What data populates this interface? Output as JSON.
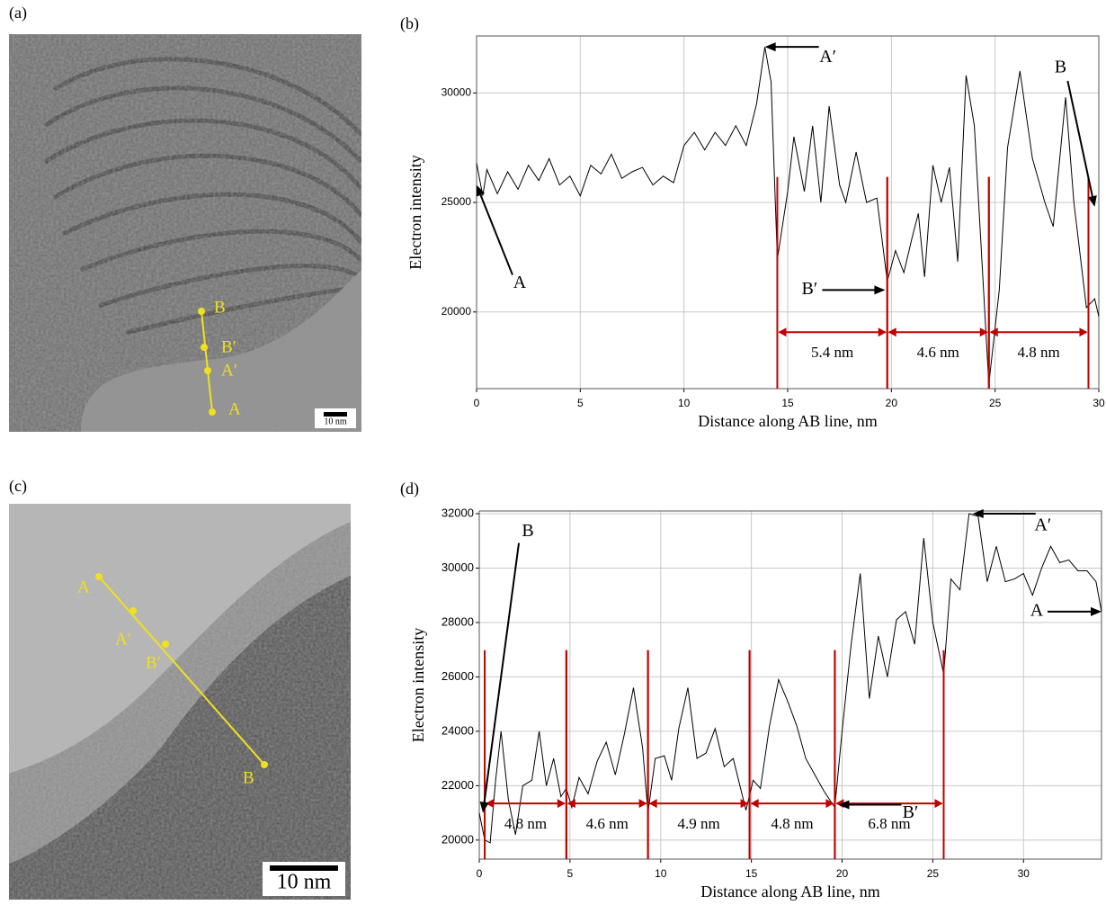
{
  "panels": {
    "a": {
      "label": "(a)",
      "points": [
        "B",
        "B′",
        "A′",
        "A"
      ],
      "scale": "10 nm"
    },
    "c": {
      "label": "(c)",
      "points": [
        "A",
        "A′",
        "B′",
        "B"
      ],
      "scale": "10 nm"
    }
  },
  "chart_data": [
    {
      "type": "line",
      "label": "(b)",
      "x_label": "Distance along AB line, nm",
      "y_label": "Electron intensity",
      "xlim": [
        0,
        30
      ],
      "ylim": [
        16500,
        32600
      ],
      "xticks": [
        0,
        5,
        10,
        15,
        20,
        25,
        30
      ],
      "yticks": [
        20000,
        25000,
        30000
      ],
      "grid": true,
      "x": [
        0,
        0.3,
        0.5,
        1,
        1.5,
        2,
        2.5,
        3,
        3.5,
        4,
        4.5,
        5,
        5.5,
        6,
        6.5,
        7,
        7.5,
        8,
        8.5,
        9,
        9.5,
        10,
        10.5,
        11,
        11.5,
        12,
        12.5,
        13,
        13.5,
        13.9,
        14.2,
        14.5,
        15,
        15.3,
        15.8,
        16.2,
        16.6,
        17,
        17.5,
        17.8,
        18.3,
        18.8,
        19.3,
        19.8,
        20.2,
        20.6,
        21,
        21.3,
        21.6,
        22,
        22.4,
        22.8,
        23.2,
        23.6,
        24,
        24.7,
        25.2,
        25.6,
        26.2,
        26.8,
        27.4,
        27.8,
        28.4,
        28.8,
        29.4,
        29.8,
        30
      ],
      "series": [
        {
          "color": "#000000",
          "values": [
            26800,
            25300,
            26500,
            25400,
            26400,
            25600,
            26700,
            26000,
            27000,
            25800,
            26200,
            25300,
            26700,
            26300,
            27200,
            26100,
            26400,
            26600,
            25800,
            26200,
            25900,
            27600,
            28200,
            27400,
            28200,
            27600,
            28500,
            27600,
            29500,
            32100,
            30500,
            22400,
            25500,
            28000,
            25500,
            28500,
            25000,
            29400,
            25800,
            25000,
            27300,
            25000,
            25200,
            21400,
            22800,
            21800,
            23400,
            24500,
            21600,
            26700,
            25000,
            26600,
            22300,
            30800,
            28500,
            16700,
            21000,
            27500,
            31000,
            27000,
            25000,
            23900,
            29800,
            25000,
            20200,
            20600,
            19800
          ]
        }
      ],
      "intervals": [
        {
          "start": 14.5,
          "end": 19.8,
          "label": "5.4 nm"
        },
        {
          "start": 19.8,
          "end": 24.7,
          "label": "4.6 nm"
        },
        {
          "start": 24.7,
          "end": 29.5,
          "label": "4.8 nm"
        }
      ],
      "interval_color": "#c00000",
      "annotations": [
        {
          "text": "A",
          "x": 0,
          "y": 25800
        },
        {
          "text": "A′",
          "x": 13.9,
          "y": 32100
        },
        {
          "text": "B′",
          "x": 19.7,
          "y": 21000
        },
        {
          "text": "B",
          "x": 29.8,
          "y": 24800
        }
      ]
    },
    {
      "type": "line",
      "label": "(d)",
      "x_label": "Distance along AB line, nm",
      "y_label": "Electron intensity",
      "xlim": [
        0,
        34.3
      ],
      "ylim": [
        19300,
        32100
      ],
      "xticks": [
        0,
        5,
        10,
        15,
        20,
        25,
        30
      ],
      "yticks": [
        20000,
        22000,
        24000,
        26000,
        28000,
        30000,
        32000
      ],
      "grid": true,
      "x": [
        0,
        0.3,
        0.6,
        0.9,
        1.2,
        1.6,
        2,
        2.4,
        2.9,
        3.3,
        3.7,
        4.1,
        4.5,
        4.8,
        5.1,
        5.5,
        6,
        6.5,
        7,
        7.5,
        8,
        8.5,
        9,
        9.3,
        9.7,
        10.2,
        10.6,
        11,
        11.5,
        12,
        12.5,
        13,
        13.5,
        14,
        14.7,
        15.1,
        15.5,
        16,
        16.5,
        17,
        17.5,
        18,
        18.5,
        19,
        19.6,
        20,
        20.5,
        21,
        21.5,
        22,
        22.5,
        23,
        23.5,
        24,
        24.5,
        25,
        25.6,
        26,
        26.5,
        27,
        27.5,
        28,
        28.5,
        29,
        29.5,
        30,
        30.5,
        31,
        31.5,
        32,
        32.5,
        33,
        33.5,
        34,
        34.3
      ],
      "series": [
        {
          "color": "#000000",
          "values": [
            21000,
            20000,
            19900,
            22200,
            24000,
            21500,
            20200,
            22000,
            22200,
            24000,
            22000,
            23000,
            21600,
            21900,
            21200,
            22300,
            21700,
            22900,
            23600,
            22400,
            23900,
            25600,
            23400,
            21000,
            23000,
            23100,
            22200,
            24100,
            25600,
            23000,
            23200,
            24100,
            22700,
            23000,
            21100,
            22200,
            21900,
            24200,
            25900,
            25100,
            24200,
            23000,
            22400,
            21800,
            21200,
            24000,
            27200,
            29800,
            25200,
            27500,
            26000,
            28100,
            28400,
            27200,
            31100,
            28000,
            26100,
            29600,
            29200,
            32000,
            31900,
            29500,
            30800,
            29500,
            29600,
            29800,
            29000,
            30000,
            30800,
            30200,
            30300,
            29900,
            29900,
            29500,
            28400
          ]
        }
      ],
      "intervals": [
        {
          "start": 0.3,
          "end": 4.8,
          "label": "4.8 nm"
        },
        {
          "start": 4.8,
          "end": 9.3,
          "label": "4.6 nm"
        },
        {
          "start": 9.3,
          "end": 14.9,
          "label": "4.9 nm"
        },
        {
          "start": 14.9,
          "end": 19.6,
          "label": "4.8 nm"
        },
        {
          "start": 19.6,
          "end": 25.6,
          "label": "6.8 nm"
        }
      ],
      "interval_color": "#c00000",
      "annotations": [
        {
          "text": "B",
          "x": 0.2,
          "y": 21000
        },
        {
          "text": "A′",
          "x": 27.2,
          "y": 32000
        },
        {
          "text": "B′",
          "x": 19.8,
          "y": 21300
        },
        {
          "text": "A",
          "x": 34.3,
          "y": 28400
        }
      ]
    }
  ]
}
